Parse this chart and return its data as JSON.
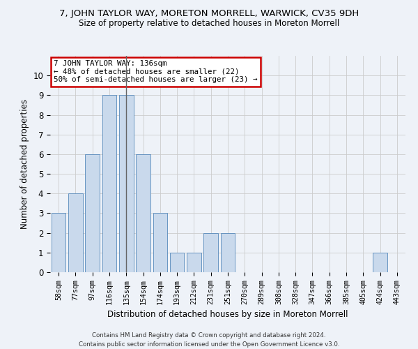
{
  "title": "7, JOHN TAYLOR WAY, MORETON MORRELL, WARWICK, CV35 9DH",
  "subtitle": "Size of property relative to detached houses in Moreton Morrell",
  "xlabel": "Distribution of detached houses by size in Moreton Morrell",
  "ylabel": "Number of detached properties",
  "categories": [
    "58sqm",
    "77sqm",
    "97sqm",
    "116sqm",
    "135sqm",
    "154sqm",
    "174sqm",
    "193sqm",
    "212sqm",
    "231sqm",
    "251sqm",
    "270sqm",
    "289sqm",
    "308sqm",
    "328sqm",
    "347sqm",
    "366sqm",
    "385sqm",
    "405sqm",
    "424sqm",
    "443sqm"
  ],
  "values": [
    3,
    4,
    6,
    9,
    9,
    6,
    3,
    1,
    1,
    2,
    2,
    0,
    0,
    0,
    0,
    0,
    0,
    0,
    0,
    1,
    0
  ],
  "bar_color": "#c9d9ec",
  "bar_edge_color": "#5588bb",
  "highlight_bar_index": 4,
  "highlight_line_color": "#666666",
  "ylim": [
    0,
    11
  ],
  "yticks": [
    0,
    1,
    2,
    3,
    4,
    5,
    6,
    7,
    8,
    9,
    10,
    11
  ],
  "annotation_title": "7 JOHN TAYLOR WAY: 136sqm",
  "annotation_line1": "← 48% of detached houses are smaller (22)",
  "annotation_line2": "50% of semi-detached houses are larger (23) →",
  "annotation_box_color": "#ffffff",
  "annotation_box_edge_color": "#cc0000",
  "footer_line1": "Contains HM Land Registry data © Crown copyright and database right 2024.",
  "footer_line2": "Contains public sector information licensed under the Open Government Licence v3.0.",
  "grid_color": "#cccccc",
  "background_color": "#eef2f8"
}
